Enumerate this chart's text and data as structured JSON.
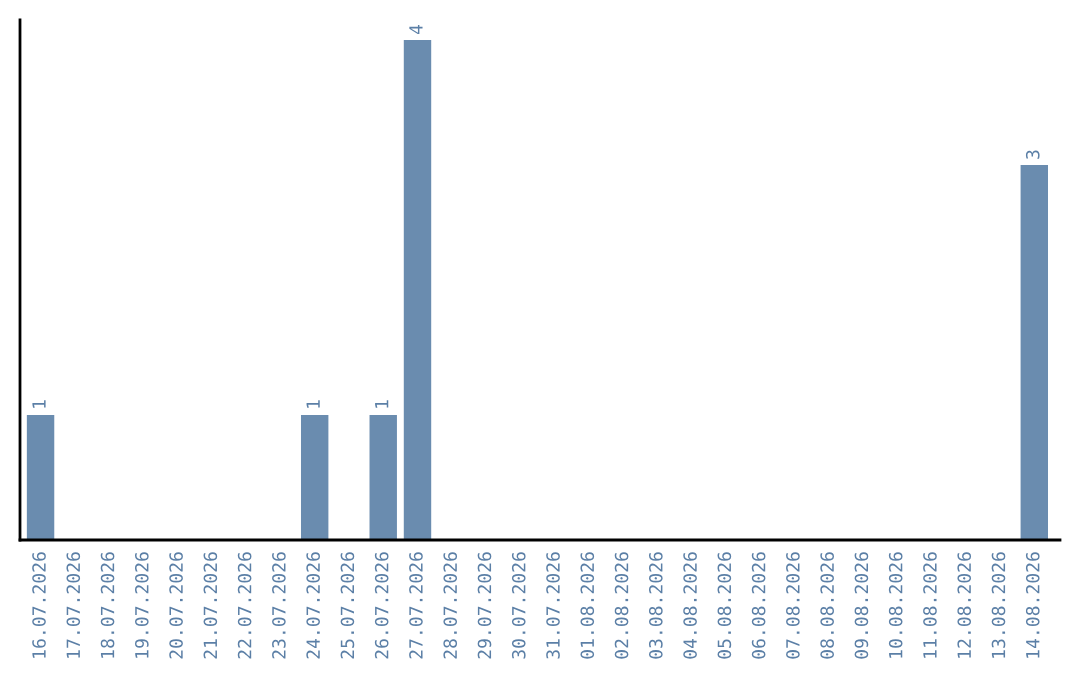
{
  "chart_data": {
    "type": "bar",
    "categories": [
      "16.07.2026",
      "17.07.2026",
      "18.07.2026",
      "19.07.2026",
      "20.07.2026",
      "21.07.2026",
      "22.07.2026",
      "23.07.2026",
      "24.07.2026",
      "25.07.2026",
      "26.07.2026",
      "27.07.2026",
      "28.07.2026",
      "29.07.2026",
      "30.07.2026",
      "31.07.2026",
      "01.08.2026",
      "02.08.2026",
      "03.08.2026",
      "04.08.2026",
      "05.08.2026",
      "06.08.2026",
      "07.08.2026",
      "08.08.2026",
      "09.08.2026",
      "10.08.2026",
      "11.08.2026",
      "12.08.2026",
      "13.08.2026",
      "14.08.2026"
    ],
    "values": [
      1,
      0,
      0,
      0,
      0,
      0,
      0,
      0,
      1,
      0,
      1,
      4,
      0,
      0,
      0,
      0,
      0,
      0,
      0,
      0,
      0,
      0,
      0,
      0,
      0,
      0,
      0,
      0,
      0,
      3
    ],
    "color": "#6a8caf",
    "value_labels": [
      "1",
      null,
      null,
      null,
      null,
      null,
      null,
      null,
      "1",
      null,
      "1",
      "4",
      null,
      null,
      null,
      null,
      null,
      null,
      null,
      null,
      null,
      null,
      null,
      null,
      null,
      null,
      null,
      null,
      null,
      "3"
    ],
    "tick_labels": "x",
    "grid": false,
    "legend": false
  }
}
